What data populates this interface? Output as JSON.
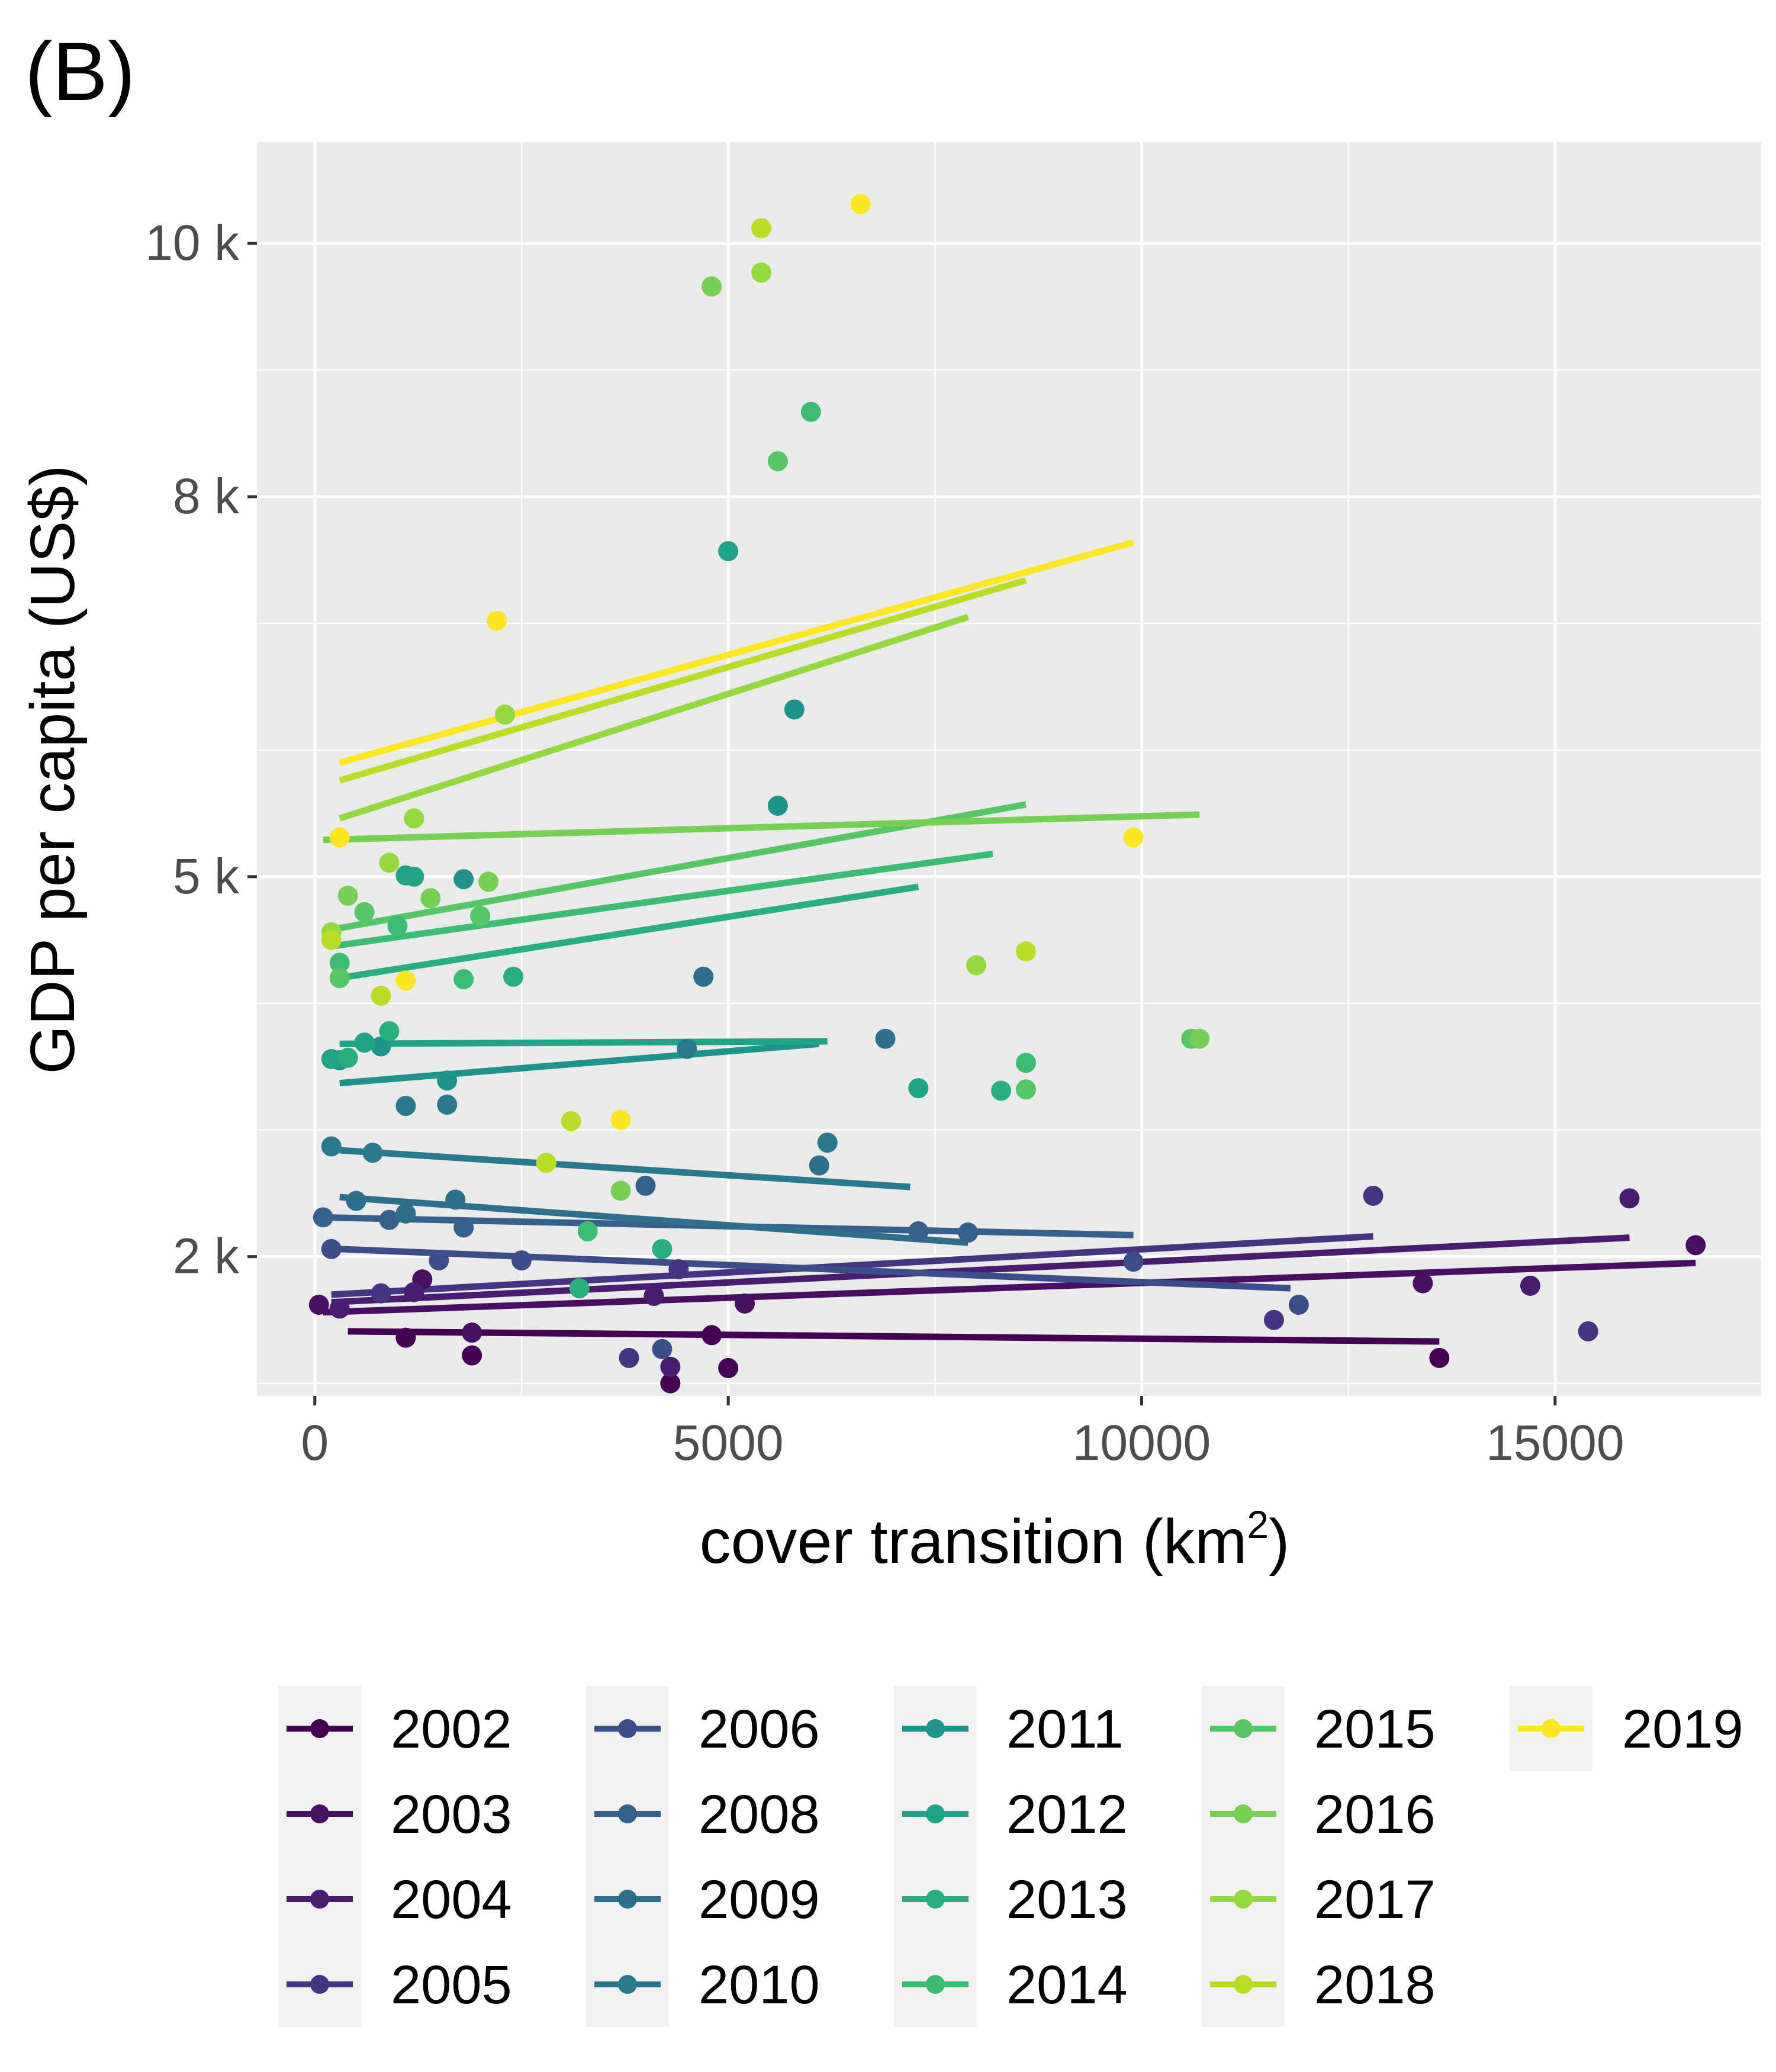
{
  "panel_label": "(B)",
  "chart_data": {
    "type": "scatter",
    "xlabel": "cover transition (km",
    "xlabel_superscript": "2",
    "xlabel_suffix": ")",
    "ylabel": "GDP per capita (US$)",
    "xlim": [
      -700,
      17500
    ],
    "ylim": [
      900,
      10800
    ],
    "x_ticks": [
      0,
      5000,
      10000,
      15000
    ],
    "x_tick_labels": [
      "0",
      "5000",
      "10000",
      "15000"
    ],
    "y_ticks": [
      2000,
      5000,
      8000,
      10000
    ],
    "y_tick_labels": [
      "2 k",
      "5 k",
      "8 k",
      "10 k"
    ],
    "y_minor_ticks": [
      1000,
      3000,
      4000,
      6000,
      7000,
      9000
    ],
    "grid": true,
    "legend_position": "bottom",
    "series": [
      {
        "name": "2002",
        "color": "#440154",
        "line": [
          [
            400,
            1410
          ],
          [
            13600,
            1330
          ]
        ],
        "points": [
          [
            1100,
            1360
          ],
          [
            1900,
            1220
          ],
          [
            4300,
            1000
          ],
          [
            4800,
            1380
          ],
          [
            5000,
            1120
          ],
          [
            13600,
            1200
          ]
        ]
      },
      {
        "name": "2003",
        "color": "#470E61",
        "line": [
          [
            100,
            1560
          ],
          [
            16700,
            1950
          ]
        ],
        "points": [
          [
            50,
            1620
          ],
          [
            1300,
            1820
          ],
          [
            1900,
            1400
          ],
          [
            5200,
            1630
          ],
          [
            13400,
            1790
          ],
          [
            16700,
            2090
          ]
        ]
      },
      {
        "name": "2004",
        "color": "#481C6E",
        "line": [
          [
            200,
            1640
          ],
          [
            15900,
            2150
          ]
        ],
        "points": [
          [
            300,
            1590
          ],
          [
            1200,
            1720
          ],
          [
            4100,
            1690
          ],
          [
            4300,
            1130
          ],
          [
            14700,
            1770
          ],
          [
            15900,
            2460
          ]
        ]
      },
      {
        "name": "2005",
        "color": "#453581",
        "line": [
          [
            200,
            1700
          ],
          [
            12800,
            2160
          ]
        ],
        "points": [
          [
            800,
            1710
          ],
          [
            3800,
            1200
          ],
          [
            4400,
            1900
          ],
          [
            11600,
            1500
          ],
          [
            12800,
            2480
          ],
          [
            15400,
            1410
          ]
        ]
      },
      {
        "name": "2006",
        "color": "#3D4D8A",
        "line": [
          [
            300,
            2060
          ],
          [
            11800,
            1750
          ]
        ],
        "points": [
          [
            200,
            2060
          ],
          [
            1500,
            1970
          ],
          [
            2500,
            1970
          ],
          [
            4200,
            1270
          ],
          [
            11900,
            1620
          ],
          [
            9900,
            1960
          ]
        ]
      },
      {
        "name": "2008",
        "color": "#355F8D",
        "line": [
          [
            100,
            2310
          ],
          [
            9900,
            2170
          ]
        ],
        "points": [
          [
            100,
            2310
          ],
          [
            900,
            2290
          ],
          [
            1800,
            2230
          ],
          [
            4000,
            2560
          ],
          [
            7900,
            2190
          ],
          [
            7300,
            2200
          ]
        ]
      },
      {
        "name": "2009",
        "color": "#2E6F8E",
        "line": [
          [
            300,
            2470
          ],
          [
            7900,
            2110
          ]
        ],
        "points": [
          [
            500,
            2440
          ],
          [
            1100,
            2340
          ],
          [
            1700,
            2450
          ],
          [
            4700,
            4210
          ],
          [
            6900,
            3720
          ],
          [
            6100,
            2720
          ]
        ]
      },
      {
        "name": "2010",
        "color": "#29798E",
        "line": [
          [
            300,
            2840
          ],
          [
            7200,
            2550
          ]
        ],
        "points": [
          [
            200,
            2870
          ],
          [
            700,
            2820
          ],
          [
            1100,
            3190
          ],
          [
            1600,
            3200
          ],
          [
            4500,
            3640
          ],
          [
            6200,
            2900
          ]
        ]
      },
      {
        "name": "2011",
        "color": "#1F948C",
        "line": [
          [
            300,
            3370
          ],
          [
            6100,
            3680
          ]
        ],
        "points": [
          [
            300,
            3550
          ],
          [
            800,
            3660
          ],
          [
            1600,
            3390
          ],
          [
            1800,
            4980
          ],
          [
            5600,
            5560
          ],
          [
            5800,
            6320
          ]
        ]
      },
      {
        "name": "2012",
        "color": "#20A386",
        "line": [
          [
            300,
            3680
          ],
          [
            6200,
            3700
          ]
        ],
        "points": [
          [
            200,
            3560
          ],
          [
            600,
            3690
          ],
          [
            1100,
            5010
          ],
          [
            1200,
            5000
          ],
          [
            5000,
            7570
          ],
          [
            7300,
            3330
          ]
        ]
      },
      {
        "name": "2013",
        "color": "#29AF7F",
        "line": [
          [
            300,
            4200
          ],
          [
            7300,
            4920
          ]
        ],
        "points": [
          [
            400,
            3570
          ],
          [
            900,
            3780
          ],
          [
            2400,
            4210
          ],
          [
            3200,
            1750
          ],
          [
            4200,
            2060
          ],
          [
            8300,
            3310
          ]
        ]
      },
      {
        "name": "2014",
        "color": "#3CBC75",
        "line": [
          [
            200,
            4450
          ],
          [
            8200,
            5180
          ]
        ],
        "points": [
          [
            300,
            4320
          ],
          [
            1000,
            4610
          ],
          [
            1800,
            4190
          ],
          [
            3300,
            2200
          ],
          [
            6000,
            8670
          ],
          [
            8600,
            3530
          ]
        ]
      },
      {
        "name": "2015",
        "color": "#56C667",
        "line": [
          [
            100,
            4570
          ],
          [
            8600,
            5570
          ]
        ],
        "points": [
          [
            300,
            4200
          ],
          [
            600,
            4720
          ],
          [
            2000,
            4690
          ],
          [
            5600,
            8280
          ],
          [
            8600,
            3320
          ],
          [
            10600,
            3720
          ]
        ]
      },
      {
        "name": "2016",
        "color": "#75D054",
        "line": [
          [
            100,
            5290
          ],
          [
            10700,
            5490
          ]
        ],
        "points": [
          [
            400,
            4850
          ],
          [
            1400,
            4830
          ],
          [
            2100,
            4960
          ],
          [
            3700,
            2520
          ],
          [
            4800,
            9660
          ],
          [
            10700,
            3720
          ]
        ]
      },
      {
        "name": "2017",
        "color": "#95D840",
        "line": [
          [
            300,
            5460
          ],
          [
            7900,
            7050
          ]
        ],
        "points": [
          [
            200,
            4560
          ],
          [
            900,
            5110
          ],
          [
            1200,
            5460
          ],
          [
            2300,
            6280
          ],
          [
            5400,
            9770
          ],
          [
            8000,
            4300
          ]
        ]
      },
      {
        "name": "2018",
        "color": "#BADE28",
        "line": [
          [
            300,
            5760
          ],
          [
            8600,
            7340
          ]
        ],
        "points": [
          [
            200,
            4500
          ],
          [
            800,
            4060
          ],
          [
            2800,
            2740
          ],
          [
            3100,
            3070
          ],
          [
            5400,
            10120
          ],
          [
            8600,
            4410
          ]
        ]
      },
      {
        "name": "2019",
        "color": "#FDE725",
        "line": [
          [
            300,
            5900
          ],
          [
            9900,
            7640
          ]
        ],
        "points": [
          [
            300,
            5310
          ],
          [
            1100,
            4180
          ],
          [
            2200,
            7020
          ],
          [
            3700,
            3080
          ],
          [
            6600,
            10310
          ],
          [
            9900,
            5310
          ]
        ]
      }
    ]
  }
}
